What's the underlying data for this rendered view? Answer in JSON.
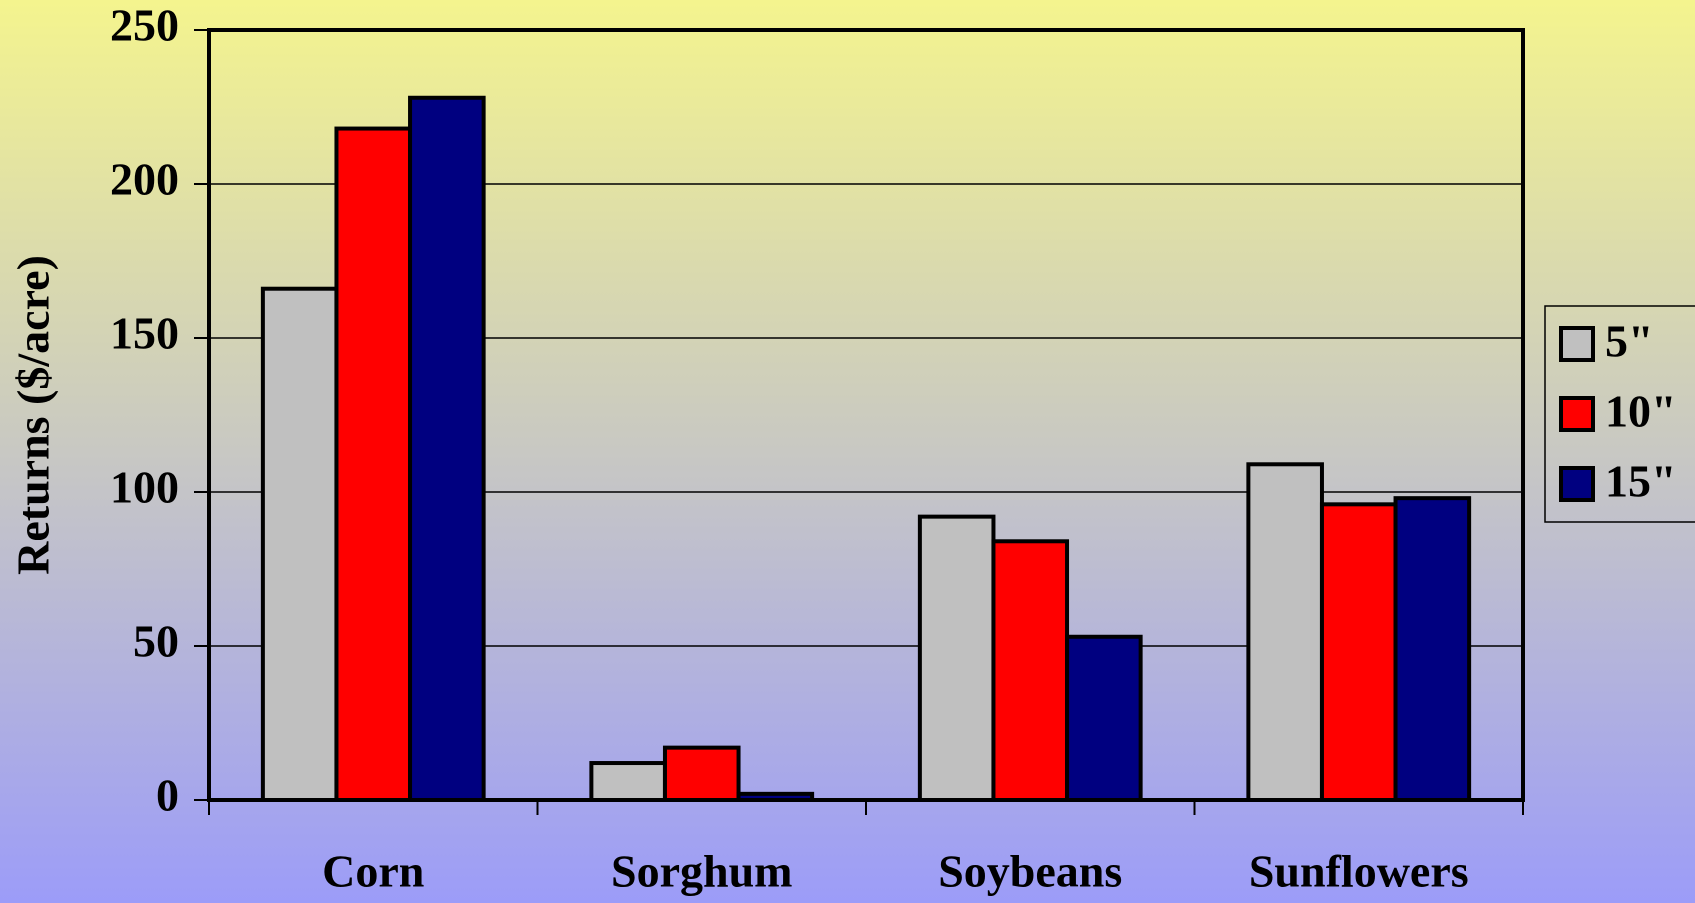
{
  "chart_data": {
    "type": "bar",
    "y_label": "Returns ($/acre)",
    "categories": [
      "Corn",
      "Sorghum",
      "Soybeans",
      "Sunflowers"
    ],
    "series": [
      {
        "name": "5\"",
        "color": "#c0c0c0",
        "values": [
          166,
          12,
          92,
          109
        ]
      },
      {
        "name": "10\"",
        "color": "#ff0000",
        "values": [
          218,
          17,
          84,
          96
        ]
      },
      {
        "name": "15\"",
        "color": "#000080",
        "values": [
          228,
          2,
          53,
          98
        ]
      }
    ],
    "ylim": [
      0,
      250
    ],
    "yticks": [
      0,
      50,
      100,
      150,
      200,
      250
    ],
    "grid": true,
    "legend": "right"
  }
}
